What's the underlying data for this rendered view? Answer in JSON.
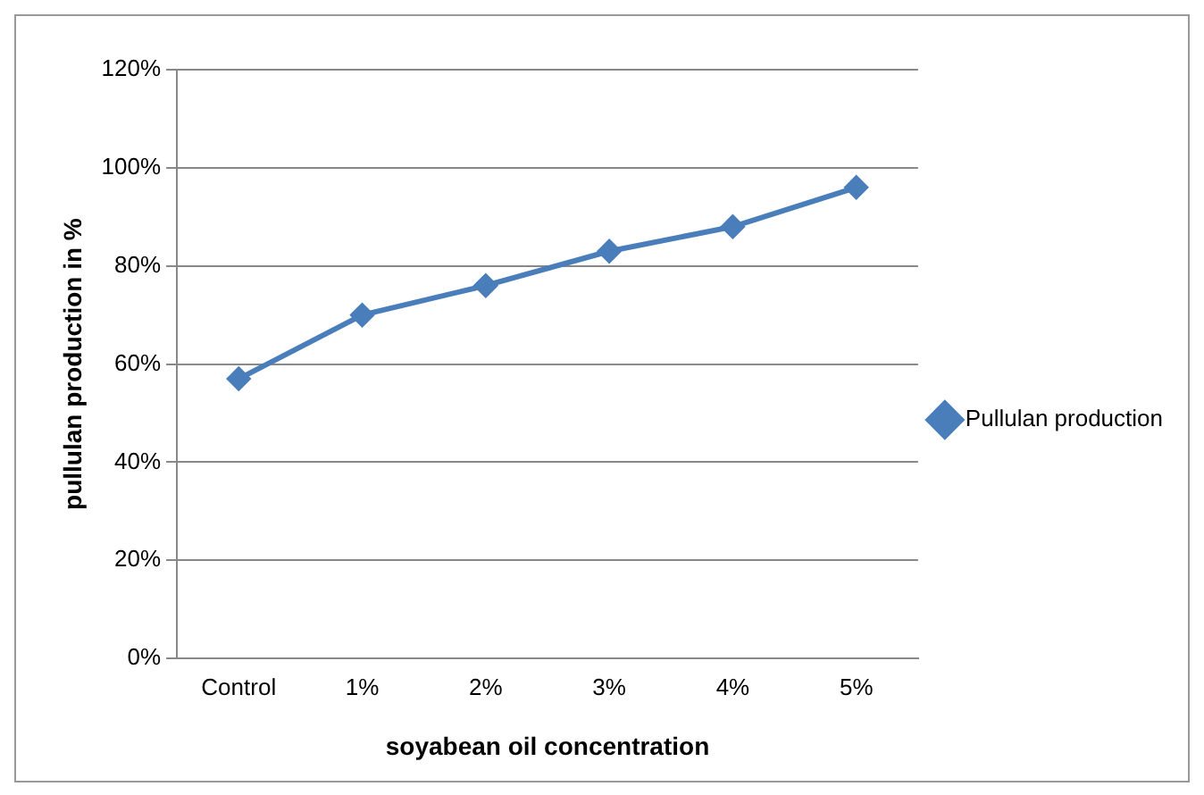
{
  "chart_data": {
    "type": "line",
    "xlabel": "soyabean oil concentration",
    "ylabel": "pullulan production in %",
    "categories": [
      "Control",
      "1%",
      "2%",
      "3%",
      "4%",
      "5%"
    ],
    "series": [
      {
        "name": "Pullulan production",
        "color": "#4a7ebb",
        "values": [
          57,
          70,
          76,
          83,
          88,
          96
        ]
      }
    ],
    "ylim": [
      0,
      120
    ],
    "yticks": [
      {
        "value": 0,
        "label": "0%"
      },
      {
        "value": 20,
        "label": "20%"
      },
      {
        "value": 40,
        "label": "40%"
      },
      {
        "value": 60,
        "label": "60%"
      },
      {
        "value": 80,
        "label": "80%"
      },
      {
        "value": 100,
        "label": "100%"
      },
      {
        "value": 120,
        "label": "120%"
      }
    ],
    "grid": "y",
    "legend": "right",
    "marker": "diamond",
    "line_style": "solid"
  }
}
